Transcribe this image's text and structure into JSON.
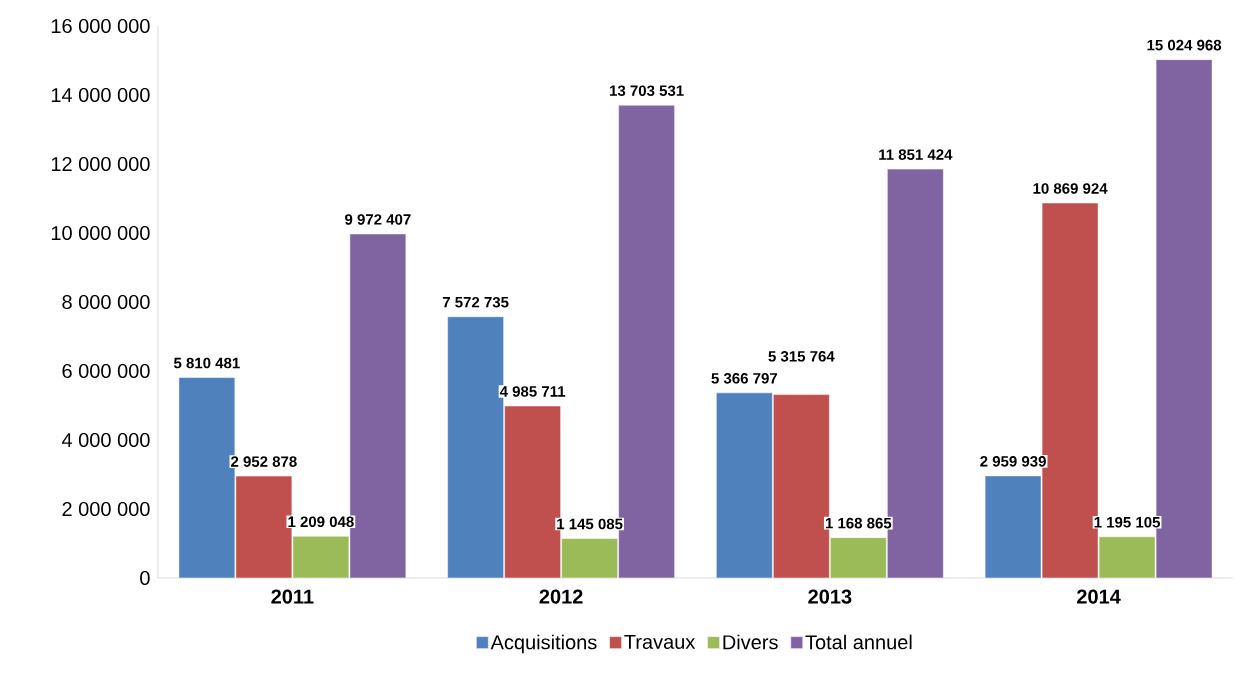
{
  "chart_data": {
    "type": "bar",
    "categories": [
      "2011",
      "2012",
      "2013",
      "2014"
    ],
    "series": [
      {
        "name": "Acquisitions",
        "color": "#4f81bd",
        "values": [
          5810481,
          7572735,
          5366797,
          2959939
        ],
        "value_labels": [
          "5 810 481",
          "7 572 735",
          "5 366 797",
          "2 959 939"
        ]
      },
      {
        "name": "Travaux",
        "color": "#c0504d",
        "values": [
          2952878,
          4985711,
          5315764,
          10869924
        ],
        "value_labels": [
          "2 952 878",
          "4 985 711",
          "5 315 764",
          "10 869 924"
        ]
      },
      {
        "name": "Divers",
        "color": "#9bbb59",
        "values": [
          1209048,
          1145085,
          1168865,
          1195105
        ],
        "value_labels": [
          "1 209 048",
          "1 145 085",
          "1 168 865",
          "1 195 105"
        ]
      },
      {
        "name": "Total annuel",
        "color": "#8064a2",
        "values": [
          9972407,
          13703531,
          11851424,
          15024968
        ],
        "value_labels": [
          "9 972 407",
          "13 703 531",
          "11 851 424",
          "15 024 968"
        ]
      }
    ],
    "ylim": [
      0,
      16000000
    ],
    "yticks": [
      0,
      {
        "value": 2000000,
        "label": "2 000 000"
      },
      {
        "value": 4000000,
        "label": "4 000 000"
      },
      {
        "value": 6000000,
        "label": "6 000 000"
      },
      {
        "value": 8000000,
        "label": "8 000 000"
      },
      {
        "value": 10000000,
        "label": "10 000 000"
      },
      {
        "value": 12000000,
        "label": "12 000 000"
      },
      {
        "value": 14000000,
        "label": "14 000 000"
      },
      {
        "value": 16000000,
        "label": "16 000 000"
      }
    ],
    "legend": "bottom"
  }
}
